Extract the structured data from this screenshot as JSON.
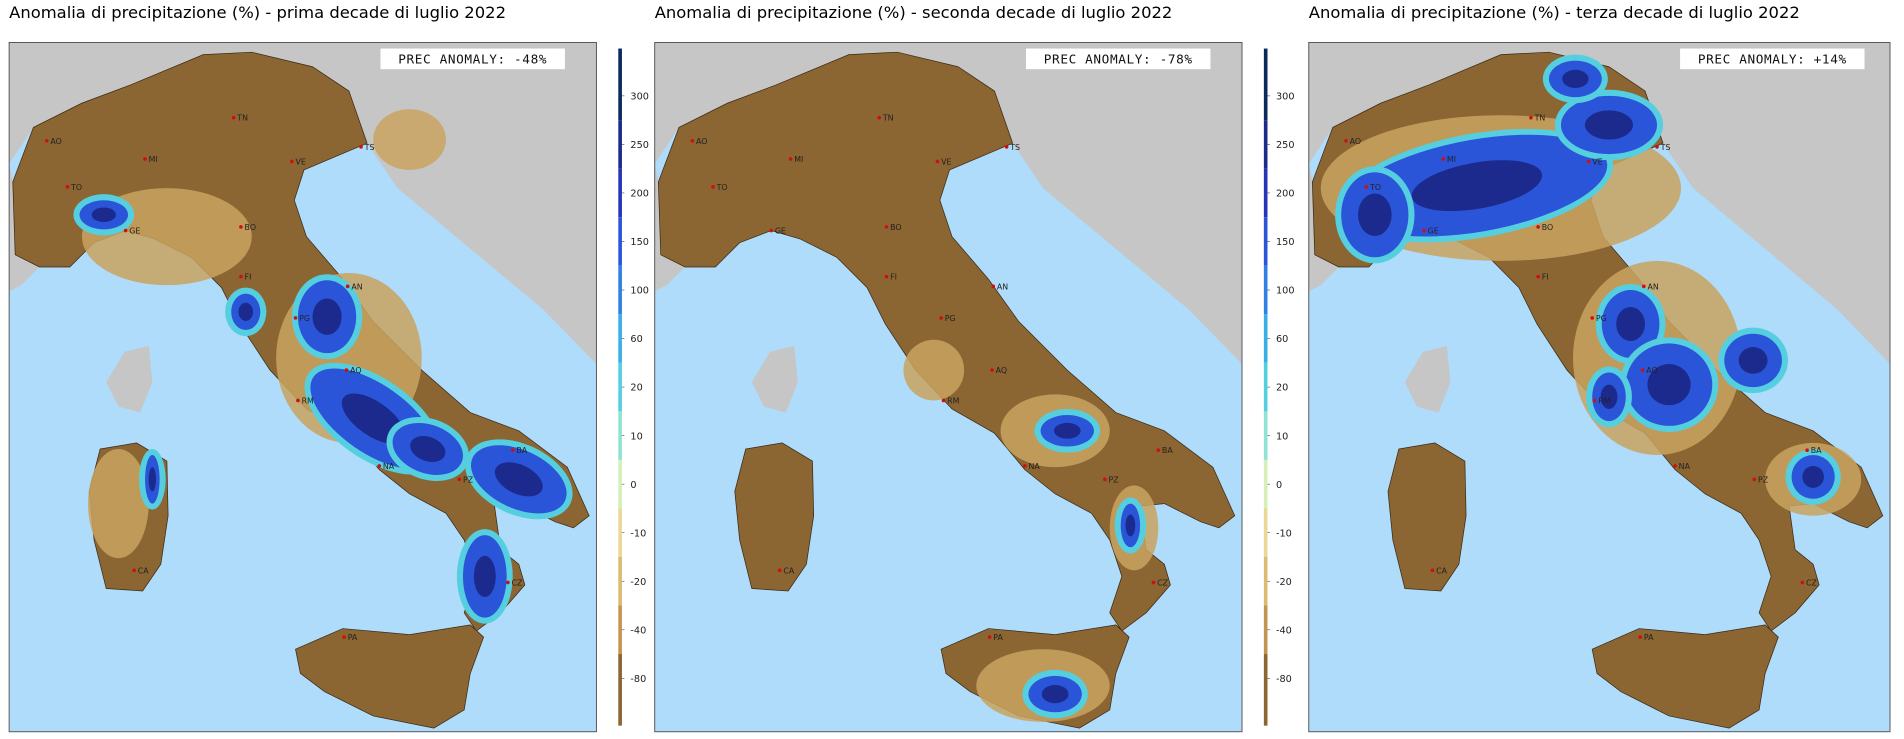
{
  "panels": [
    {
      "title": "Anomalia di precipitazione (%) - prima decade di luglio 2022",
      "anomaly": "PREC ANOMALY: -48%"
    },
    {
      "title": "Anomalia di precipitazione (%) - seconda decade di luglio 2022",
      "anomaly": "PREC ANOMALY: -78%"
    },
    {
      "title": "Anomalia di precipitazione (%) - terza decade di luglio 2022",
      "anomaly": "PREC ANOMALY: +14%"
    }
  ],
  "colorbar": {
    "ticks": [
      300,
      250,
      200,
      150,
      100,
      60,
      20,
      10,
      0,
      -10,
      -20,
      -40,
      -80
    ],
    "colors": [
      "#0b2a5c",
      "#1b2a8c",
      "#2634b8",
      "#2a55d8",
      "#2f80e6",
      "#3aaee6",
      "#55cfe0",
      "#8fe3d2",
      "#d6efb8",
      "#ead895",
      "#dbbb72",
      "#c49552",
      "#8b6532"
    ]
  },
  "cities": [
    "AO",
    "MI",
    "TN",
    "VE",
    "TS",
    "TO",
    "GE",
    "BO",
    "FI",
    "AN",
    "PG",
    "AQ",
    "RM",
    "NA",
    "BA",
    "PZ",
    "CZ",
    "PA",
    "CA"
  ]
}
